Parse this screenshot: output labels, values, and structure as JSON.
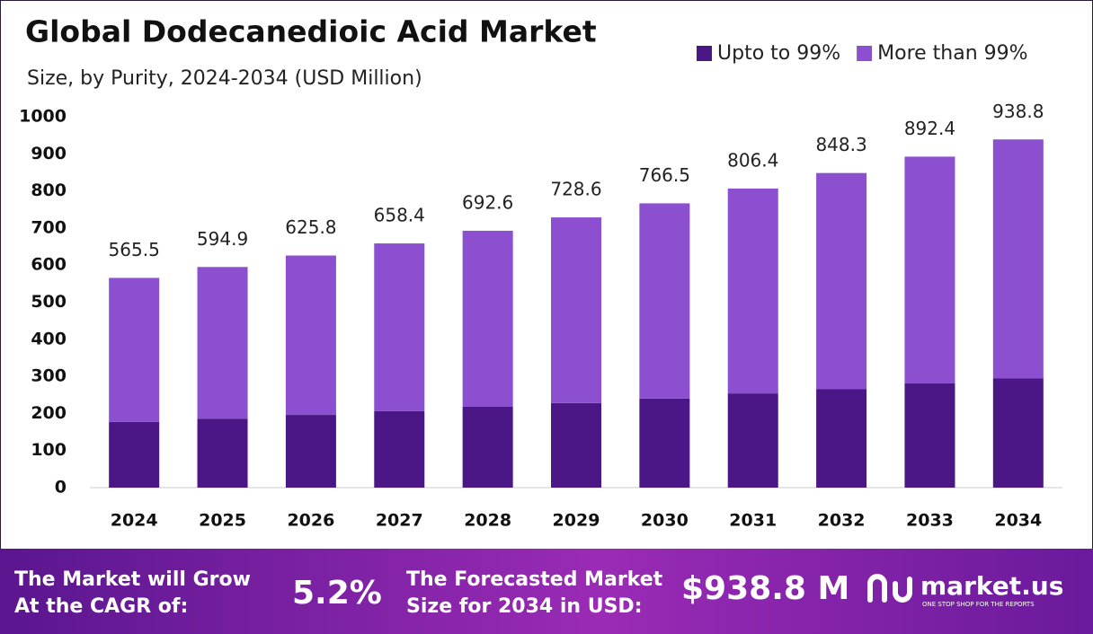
{
  "chart_data": {
    "type": "stacked-bar",
    "title": "Global Dodecanedioic Acid Market",
    "subtitle": "Size, by Purity, 2024-2034 (USD Million)",
    "categories": [
      "2024",
      "2025",
      "2026",
      "2027",
      "2028",
      "2029",
      "2030",
      "2031",
      "2032",
      "2033",
      "2034"
    ],
    "series": [
      {
        "name": "Upto to 99%",
        "color": "#4b1685",
        "values": [
          177,
          186,
          196,
          206,
          218,
          228,
          240,
          254,
          266,
          281,
          295
        ]
      },
      {
        "name": "More than 99%",
        "color": "#8b4fd0",
        "values": [
          388.5,
          408.9,
          429.8,
          452.4,
          474.6,
          500.6,
          526.5,
          552.4,
          582.3,
          611.4,
          643.8
        ]
      }
    ],
    "totals": [
      565.5,
      594.9,
      625.8,
      658.4,
      692.6,
      728.6,
      766.5,
      806.4,
      848.3,
      892.4,
      938.8
    ],
    "ylim": [
      0,
      1000
    ],
    "yticks": [
      0,
      100,
      200,
      300,
      400,
      500,
      600,
      700,
      800,
      900,
      1000
    ],
    "legend": "top-right"
  },
  "footer": {
    "cagr_label": [
      "The Market will Grow",
      "At the CAGR of:"
    ],
    "cagr_value": "5.2%",
    "forecast_label": [
      "The Forecasted Market",
      "Size for 2034 in USD:"
    ],
    "forecast_value": "$938.8 M",
    "brand": "market.us",
    "tagline": "ONE STOP SHOP FOR THE REPORTS"
  }
}
